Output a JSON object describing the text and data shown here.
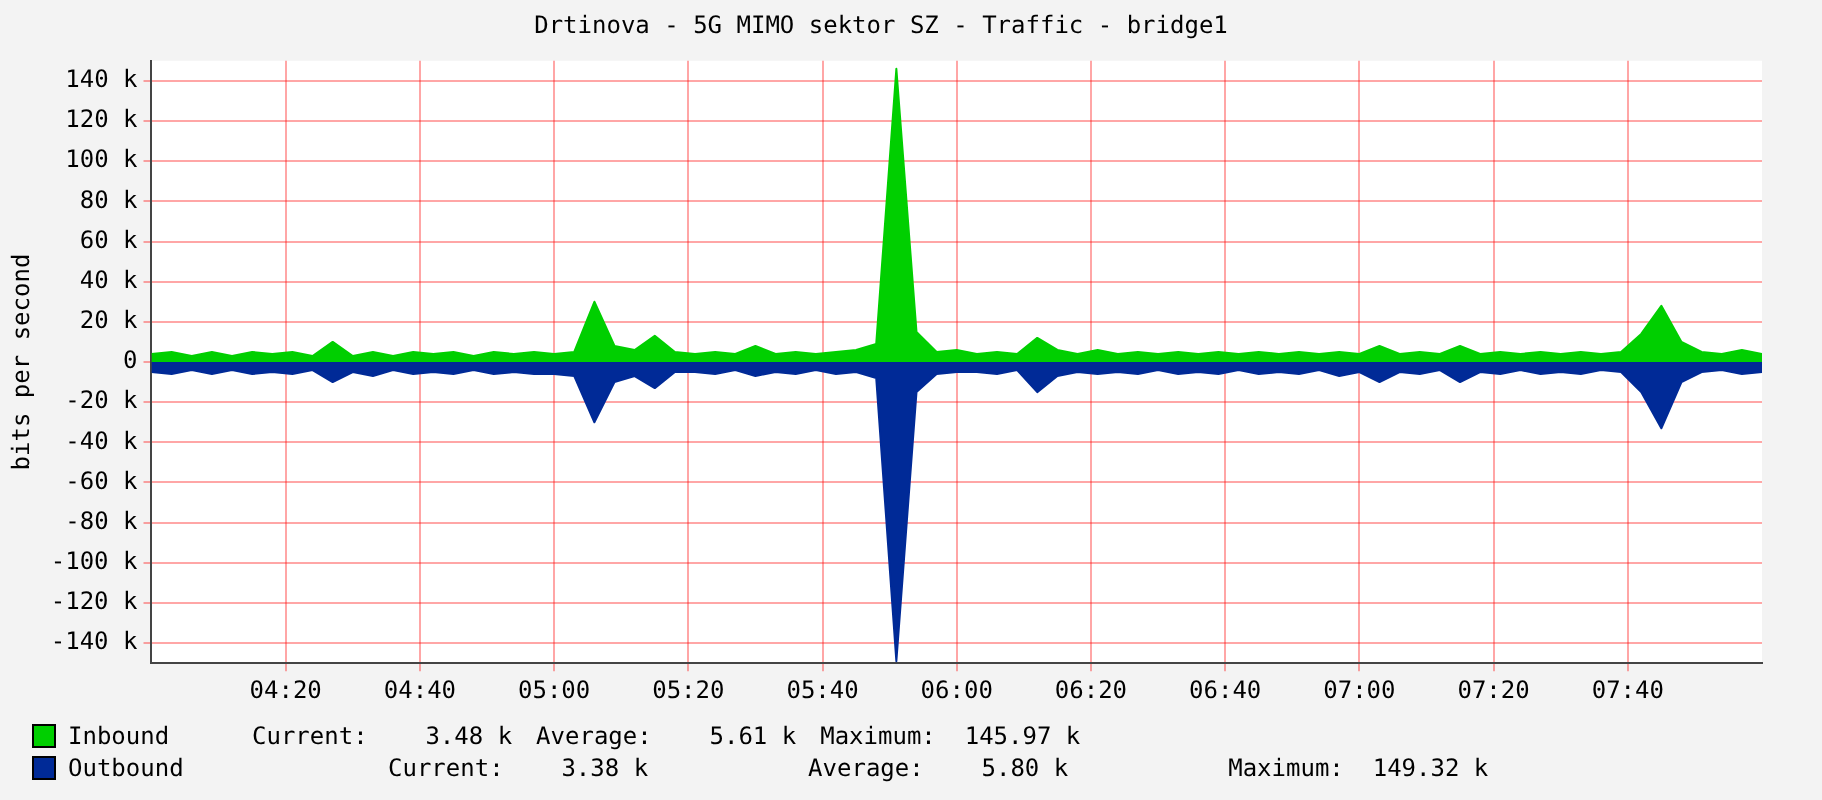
{
  "chart_data": {
    "type": "area",
    "title": "Drtinova - 5G MIMO sektor SZ - Traffic - bridge1",
    "ylabel": "bits per second",
    "x": [
      4,
      4.05,
      4.1,
      4.15,
      4.2,
      4.25,
      4.3,
      4.35,
      4.4,
      4.45,
      4.5,
      4.55,
      4.6,
      4.65,
      4.7,
      4.75,
      4.8,
      4.85,
      4.9,
      4.95,
      5,
      5.05,
      5.1,
      5.15,
      5.2,
      5.25,
      5.3,
      5.35,
      5.4,
      5.45,
      5.5,
      5.55,
      5.6,
      5.65,
      5.7,
      5.75,
      5.8,
      5.85,
      5.9,
      5.95,
      6,
      6.05,
      6.1,
      6.15,
      6.2,
      6.25,
      6.3,
      6.35,
      6.4,
      6.45,
      6.5,
      6.55,
      6.6,
      6.65,
      6.7,
      6.75,
      6.8,
      6.85,
      6.9,
      6.95,
      7,
      7.05,
      7.1,
      7.15,
      7.2,
      7.25,
      7.3,
      7.35,
      7.4,
      7.45,
      7.5,
      7.55,
      7.6,
      7.65,
      7.7,
      7.75,
      7.8,
      7.85,
      7.9,
      7.95,
      8
    ],
    "series": [
      {
        "name": "Inbound",
        "color": "#00cf00",
        "values": [
          4,
          5,
          3,
          5,
          3,
          5,
          4,
          5,
          3,
          10,
          3,
          5,
          3,
          5,
          4,
          5,
          3,
          5,
          4,
          5,
          4,
          5,
          30,
          8,
          6,
          13,
          5,
          4,
          5,
          4,
          8,
          4,
          5,
          4,
          5,
          6,
          9,
          146,
          15,
          5,
          6,
          4,
          5,
          4,
          12,
          6,
          4,
          6,
          4,
          5,
          4,
          5,
          4,
          5,
          4,
          5,
          4,
          5,
          4,
          5,
          4,
          8,
          4,
          5,
          4,
          8,
          4,
          5,
          4,
          5,
          4,
          5,
          4,
          5,
          14,
          28,
          10,
          5,
          4,
          6,
          4
        ]
      },
      {
        "name": "Outbound",
        "color": "#002a97",
        "values": [
          -5,
          -6,
          -4,
          -6,
          -4,
          -6,
          -5,
          -6,
          -4,
          -10,
          -5,
          -7,
          -4,
          -6,
          -5,
          -6,
          -4,
          -6,
          -5,
          -6,
          -6,
          -7,
          -30,
          -10,
          -7,
          -13,
          -5,
          -5,
          -6,
          -4,
          -7,
          -5,
          -6,
          -4,
          -6,
          -5,
          -8,
          -149,
          -15,
          -6,
          -5,
          -5,
          -6,
          -4,
          -15,
          -7,
          -5,
          -6,
          -5,
          -6,
          -4,
          -6,
          -5,
          -6,
          -4,
          -6,
          -5,
          -6,
          -4,
          -7,
          -5,
          -10,
          -5,
          -6,
          -4,
          -10,
          -5,
          -6,
          -4,
          -6,
          -5,
          -6,
          -4,
          -5,
          -15,
          -33,
          -10,
          -5,
          -4,
          -6,
          -5
        ]
      }
    ],
    "xlim": [
      4,
      8
    ],
    "xticks": [
      {
        "value": 4.3333,
        "label": "04:20"
      },
      {
        "value": 4.6667,
        "label": "04:40"
      },
      {
        "value": 5,
        "label": "05:00"
      },
      {
        "value": 5.3333,
        "label": "05:20"
      },
      {
        "value": 5.6667,
        "label": "05:40"
      },
      {
        "value": 6,
        "label": "06:00"
      },
      {
        "value": 6.3333,
        "label": "06:20"
      },
      {
        "value": 6.6667,
        "label": "06:40"
      },
      {
        "value": 7,
        "label": "07:00"
      },
      {
        "value": 7.3333,
        "label": "07:20"
      },
      {
        "value": 7.6667,
        "label": "07:40"
      }
    ],
    "ylim": [
      -150,
      150
    ],
    "yticks": [
      {
        "value": -140,
        "label": "-140 k"
      },
      {
        "value": -120,
        "label": "-120 k"
      },
      {
        "value": -100,
        "label": "-100 k"
      },
      {
        "value": -80,
        "label": "-80 k"
      },
      {
        "value": -60,
        "label": "-60 k"
      },
      {
        "value": -40,
        "label": "-40 k"
      },
      {
        "value": -20,
        "label": "-20 k"
      },
      0,
      {
        "value": 20,
        "label": "20 k"
      },
      {
        "value": 40,
        "label": "40 k"
      },
      {
        "value": 60,
        "label": "60 k"
      },
      {
        "value": 80,
        "label": "80 k"
      },
      {
        "value": 100,
        "label": "100 k"
      },
      {
        "value": 120,
        "label": "120 k"
      },
      {
        "value": 140,
        "label": "140 k"
      }
    ],
    "grid": true,
    "legend": "bottom",
    "annotations": [
      "Current:    3.48 k",
      "Average:    5.61 k",
      "Maximum:  145.97 k",
      "Current:    3.38 k",
      "Average:    5.80 k",
      "Maximum:  149.32 k"
    ]
  }
}
